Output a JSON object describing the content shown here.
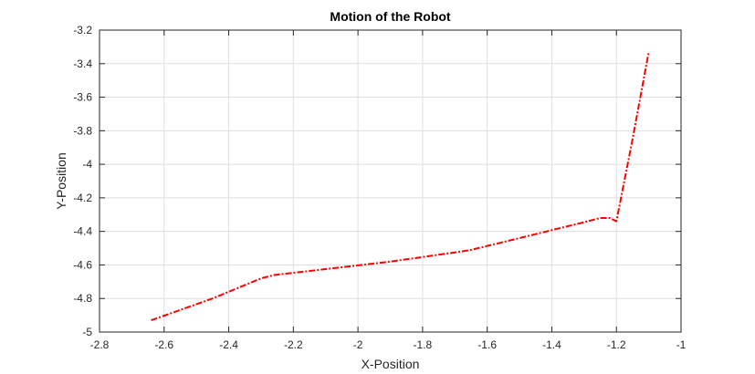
{
  "chart_data": {
    "type": "line",
    "title": "Motion of the Robot",
    "xlabel": "X-Position",
    "ylabel": "Y-Position",
    "xlim": [
      -2.8,
      -1
    ],
    "ylim": [
      -5,
      -3.2
    ],
    "xticks": [
      "-2.8",
      "-2.6",
      "-2.4",
      "-2.2",
      "-2",
      "-1.8",
      "-1.6",
      "-1.4",
      "-1.2",
      "-1"
    ],
    "yticks": [
      "-3.2",
      "-3.4",
      "-3.6",
      "-3.8",
      "-4",
      "-4.2",
      "-4.4",
      "-4.6",
      "-4.8",
      "-5"
    ],
    "grid": true,
    "line_color": "#ff0000",
    "line_style": "dash-dot",
    "series": [
      {
        "x": [
          -2.64,
          -2.45,
          -2.3,
          -2.26,
          -2.1,
          -1.9,
          -1.68,
          -1.65,
          -1.5,
          -1.3,
          -1.25,
          -1.22,
          -1.2,
          -1.15,
          -1.1
        ],
        "y": [
          -4.93,
          -4.8,
          -4.68,
          -4.66,
          -4.625,
          -4.58,
          -4.52,
          -4.51,
          -4.44,
          -4.345,
          -4.32,
          -4.32,
          -4.34,
          -3.85,
          -3.33
        ]
      }
    ]
  }
}
